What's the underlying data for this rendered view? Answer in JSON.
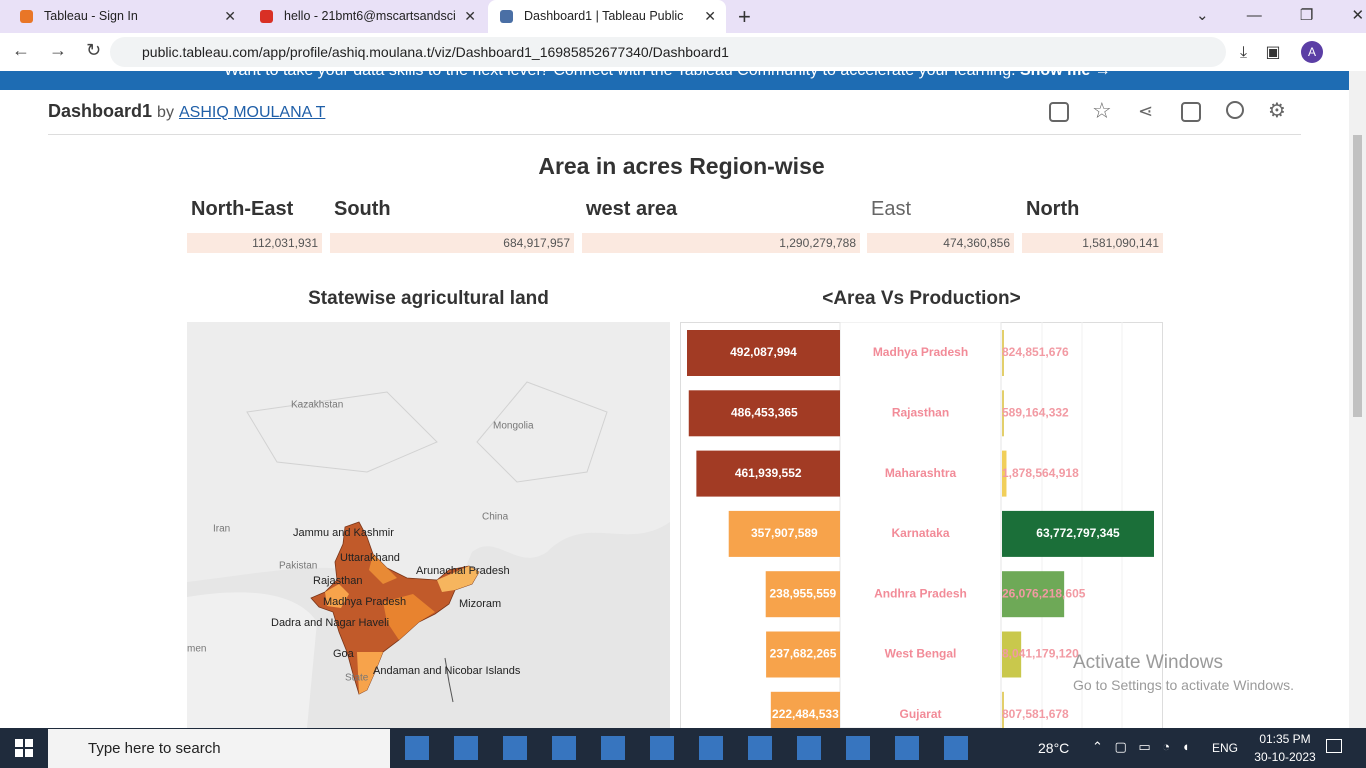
{
  "browser": {
    "tabs": [
      "Tableau - Sign In",
      "hello - 21bmt6@mscartsandsci",
      "Dashboard1 | Tableau Public"
    ],
    "url": "public.tableau.com/app/profile/ashiq.moulana.t/viz/Dashboard1_16985852677340/Dashboard1",
    "banner": "Want to take your data skills to the next level? Connect with the Tableau Community to accelerate your learning.",
    "banner_link": "Show me →"
  },
  "dashboard": {
    "title": "Dashboard1",
    "by": "by",
    "author": "ASHIQ MOULANA T",
    "summary": {
      "title": "Area in acres Region-wise",
      "regions": [
        {
          "name": "North-East",
          "value": "112,031,931"
        },
        {
          "name": "South",
          "value": "684,917,957"
        },
        {
          "name": "west area",
          "value": "1,290,279,788"
        },
        {
          "name": "East",
          "value": "474,360,856"
        },
        {
          "name": "North",
          "value": "1,581,090,141"
        }
      ]
    },
    "map": {
      "title": "Statewise agricultural land",
      "countries": [
        "Kazakhstan",
        "Mongolia",
        "China",
        "Iran",
        "Pakistan",
        "men"
      ],
      "states": [
        "Jammu and Kashmir",
        "Uttarakhand",
        "Arunachal Pradesh",
        "Rajasthan",
        "Madhya Pradesh",
        "Mizoram",
        "Dadra and Nagar Haveli",
        "Goa",
        "Andaman and Nicobar Islands",
        "State"
      ]
    },
    "chart": {
      "title": "<Area Vs Production>",
      "states": [
        "Madhya Pradesh",
        "Rajasthan",
        "Maharashtra",
        "Karnataka",
        "Andhra Pradesh",
        "West Bengal",
        "Gujarat"
      ],
      "area": [
        492087994,
        486453365,
        461939552,
        357907589,
        238955559,
        237682265,
        222484533
      ],
      "area_labels": [
        "492,087,994",
        "486,453,365",
        "461,939,552",
        "357,907,589",
        "238,955,559",
        "237,682,265",
        "222,484,533"
      ],
      "area_colors": [
        "#a23b24",
        "#a23b24",
        "#a23b24",
        "#f7a34b",
        "#f7a34b",
        "#f7a34b",
        "#f7a34b"
      ],
      "production": [
        824851676,
        589164332,
        1878564918,
        63772797345,
        26076218605,
        8041179120,
        807581678
      ],
      "production_labels": [
        "824,851,676",
        "589,164,332",
        "1,878,564,918",
        "63,772,797,345",
        "26,076,218,605",
        "8,041,179,120",
        "807,581,678"
      ],
      "production_colors": [
        "#e3cf6b",
        "#e3cf6b",
        "#f1cf5a",
        "#1b6f39",
        "#6ea957",
        "#c9c84c",
        "#e3cf6b"
      ]
    }
  },
  "watermark": {
    "title": "Activate Windows",
    "text": "Go to Settings to activate Windows."
  },
  "taskbar": {
    "search": "Type here to search",
    "weather": "28°C",
    "language": "ENG",
    "time": "01:35 PM",
    "date": "30-10-2023"
  }
}
